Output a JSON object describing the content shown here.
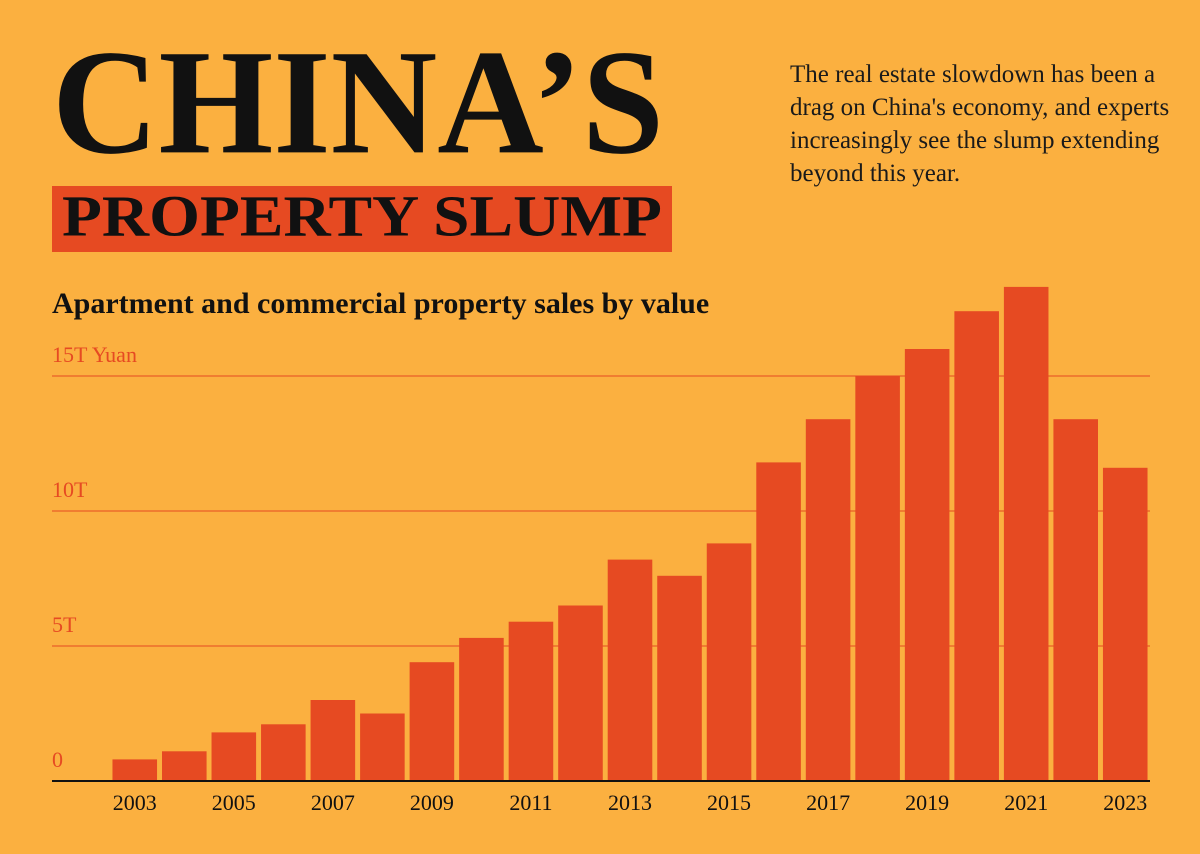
{
  "title": "CHINA’S",
  "title_highlight": "PROPERTY SLUMP",
  "description": "The real estate slowdown has been a drag on China's economy, and experts increasingly see the slump extending beyond this year.",
  "chart_data": {
    "type": "bar",
    "title": "Apartment and commercial property sales by value",
    "categories": [
      "2003",
      null,
      "2005",
      null,
      "2007",
      null,
      "2009",
      null,
      "2011",
      null,
      "2013",
      null,
      "2015",
      null,
      "2017",
      null,
      "2019",
      null,
      "2021",
      null,
      "2023"
    ],
    "values": [
      0.8,
      1.1,
      1.8,
      2.1,
      3.0,
      2.5,
      4.4,
      5.3,
      5.9,
      6.5,
      8.2,
      7.6,
      8.8,
      11.8,
      13.4,
      15.0,
      16.0,
      17.4,
      18.3,
      13.4,
      11.6
    ],
    "color": "#e64a22",
    "ylim": [
      0,
      18.5
    ],
    "yticks": [
      0,
      {
        "value": 5,
        "label": "5T"
      },
      {
        "value": 10,
        "label": "10T"
      },
      {
        "value": 15,
        "label": "15T Yuan"
      }
    ],
    "grid": true
  }
}
